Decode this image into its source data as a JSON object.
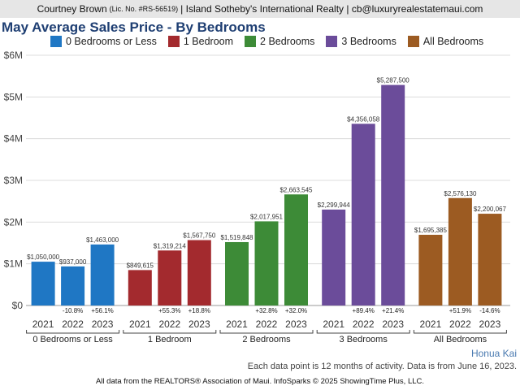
{
  "header": {
    "agent_name": "Courtney Brown",
    "license": "(Lic. No. #RS-56519)",
    "brokerage_contact": "| Island Sotheby's International Realty | cb@luxuryrealestatemaui.com"
  },
  "footer": {
    "region": "Honua Kai",
    "note": "Each data point is 12 months of activity. Data is from June 16, 2023.",
    "source": "All data from the REALTORS® Association of Maui. InfoSparks © 2025 ShowingTime Plus, LLC."
  },
  "chart_data": {
    "type": "bar",
    "title": "May Average Sales Price - By Bedrooms",
    "legend_position": "top",
    "grid": true,
    "ylim": [
      0,
      6000000
    ],
    "yticks": [
      {
        "value": 0,
        "label": "$0"
      },
      {
        "value": 1000000,
        "label": "$1M"
      },
      {
        "value": 2000000,
        "label": "$2M"
      },
      {
        "value": 3000000,
        "label": "$3M"
      },
      {
        "value": 4000000,
        "label": "$4M"
      },
      {
        "value": 5000000,
        "label": "$5M"
      },
      {
        "value": 6000000,
        "label": "$6M"
      }
    ],
    "years": [
      "2021",
      "2022",
      "2023"
    ],
    "groups": [
      {
        "name": "0 Bedrooms or Less",
        "color": "#1f77c4",
        "values": [
          1050000,
          937000,
          1463000
        ],
        "value_labels": [
          "$1,050,000",
          "$937,000",
          "$1,463,000"
        ],
        "changes": [
          "",
          "-10.8%",
          "+56.1%"
        ]
      },
      {
        "name": "1 Bedroom",
        "color": "#a32a2e",
        "values": [
          849615,
          1319214,
          1567750
        ],
        "value_labels": [
          "$849,615",
          "$1,319,214",
          "$1,567,750"
        ],
        "changes": [
          "",
          "+55.3%",
          "+18.8%"
        ]
      },
      {
        "name": "2 Bedrooms",
        "color": "#3d8b37",
        "values": [
          1519848,
          2017951,
          2663545
        ],
        "value_labels": [
          "$1,519,848",
          "$2,017,951",
          "$2,663,545"
        ],
        "changes": [
          "",
          "+32.8%",
          "+32.0%"
        ]
      },
      {
        "name": "3 Bedrooms",
        "color": "#6b4c9a",
        "values": [
          2299944,
          4356058,
          5287500
        ],
        "value_labels": [
          "$2,299,944",
          "$4,356,058",
          "$5,287,500"
        ],
        "changes": [
          "",
          "+89.4%",
          "+21.4%"
        ]
      },
      {
        "name": "All Bedrooms",
        "color": "#9c5b22",
        "values": [
          1695385,
          2576130,
          2200067
        ],
        "value_labels": [
          "$1,695,385",
          "$2,576,130",
          "$2,200,067"
        ],
        "changes": [
          "",
          "+51.9%",
          "-14.6%"
        ]
      }
    ]
  }
}
